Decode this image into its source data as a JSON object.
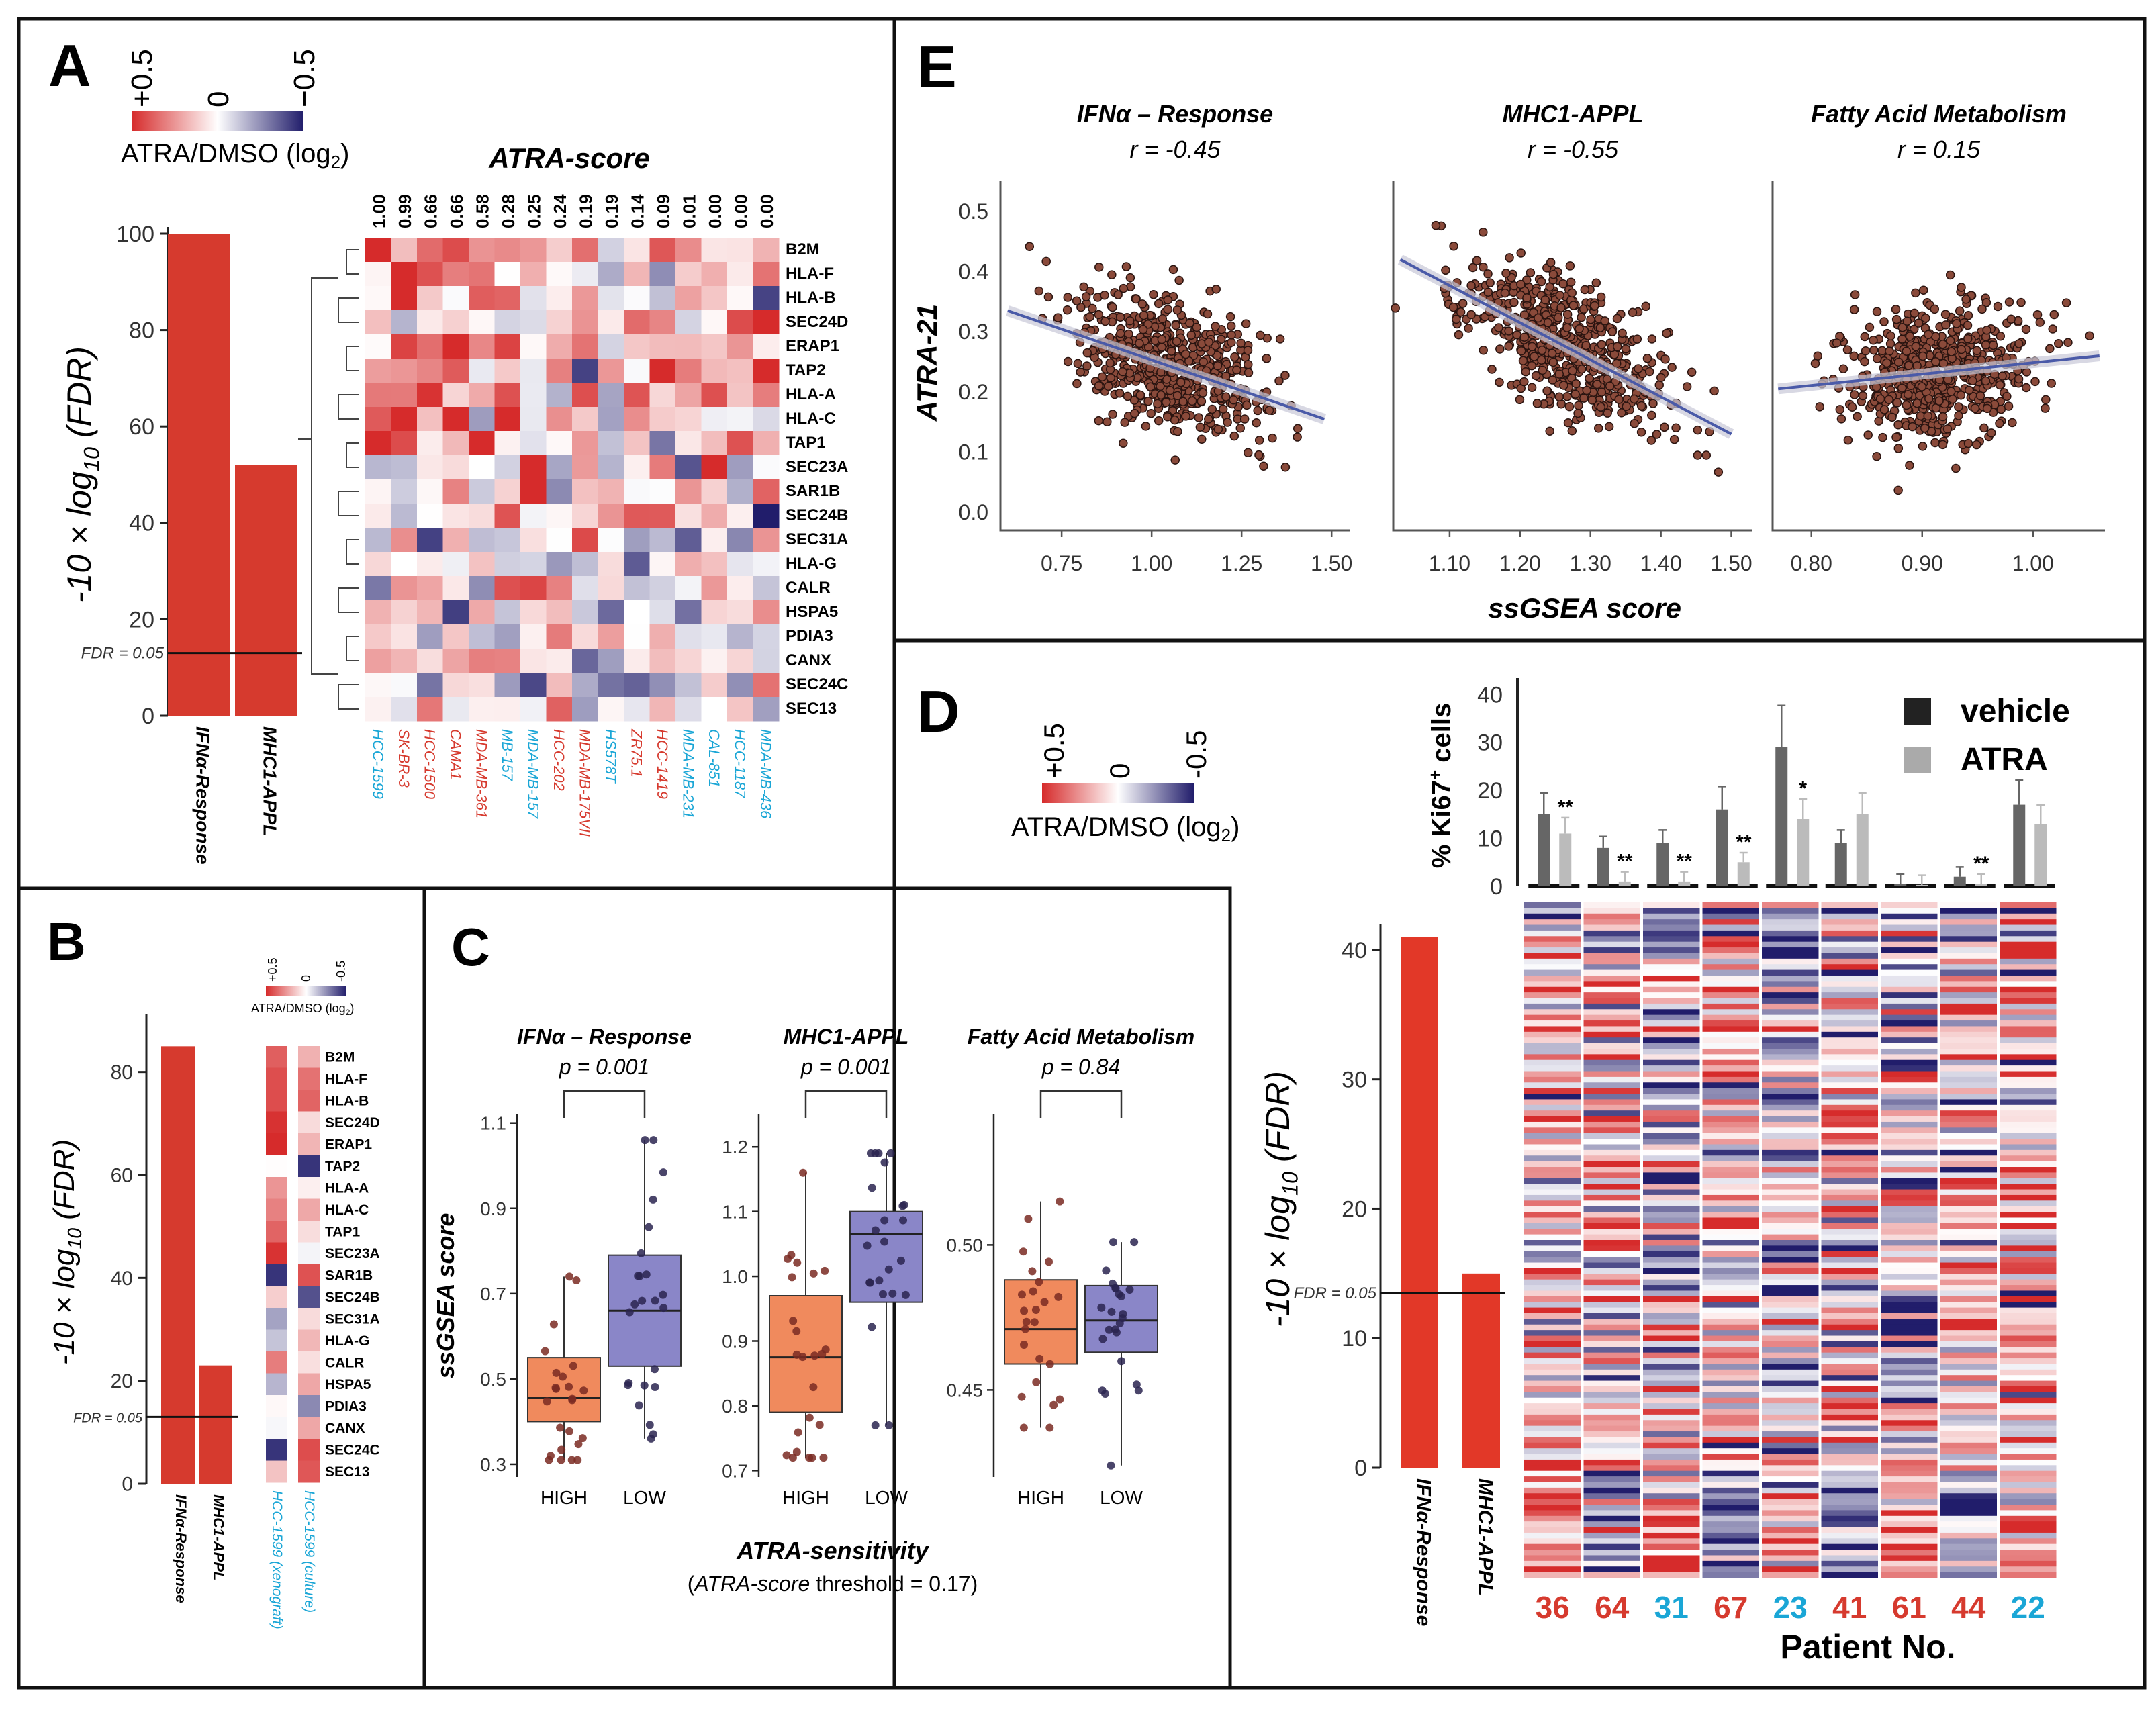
{
  "scale_labels": {
    "pos": "+0.5",
    "zero": "0",
    "neg": "−0.5",
    "small_neg": "-0.5",
    "caption": "ATRA/DMSO (log",
    "sub": "2",
    "close": ")"
  },
  "colors": {
    "red": "#c8322a",
    "bar_red": "#d63a2e",
    "bar_redD": "#e23828",
    "blue": "#2e2a7a",
    "cyan": "#1aa6d6",
    "redtext": "#d63a2e",
    "orange": "#f08a5d",
    "purple": "#8a86c8",
    "dot": "#8a4a3a",
    "grey_dark": "#555555",
    "grey_light": "#aaaaaa"
  },
  "panelA": {
    "label": "A",
    "ylabel": "-10 × log10 (FDR)",
    "yticks": [
      "0",
      "20",
      "40",
      "60",
      "80",
      "100"
    ],
    "fdr_label": "FDR = 0.05",
    "fdr_value": 13,
    "bars": [
      {
        "name": "IFNα-Response",
        "value": 100
      },
      {
        "name": "MHC1-APPL",
        "value": 52
      }
    ],
    "heat_title": "ATRA-score",
    "scores": [
      "1.00",
      "0.99",
      "0.66",
      "0.66",
      "0.58",
      "0.28",
      "0.25",
      "0.24",
      "0.19",
      "0.19",
      "0.14",
      "0.09",
      "0.01",
      "0.00",
      "0.00",
      "0.00"
    ],
    "genes": [
      "B2M",
      "HLA-F",
      "HLA-B",
      "SEC24D",
      "ERAP1",
      "TAP2",
      "HLA-A",
      "HLA-C",
      "TAP1",
      "SEC23A",
      "SAR1B",
      "SEC24B",
      "SEC31A",
      "HLA-G",
      "CALR",
      "HSPA5",
      "PDIA3",
      "CANX",
      "SEC24C",
      "SEC13"
    ],
    "cell_lines": [
      {
        "name": "HCC-1599",
        "color": "cyan"
      },
      {
        "name": "SK-BR-3",
        "color": "red"
      },
      {
        "name": "HCC-1500",
        "color": "red"
      },
      {
        "name": "CAMA1",
        "color": "red"
      },
      {
        "name": "MDA-MB-361",
        "color": "red"
      },
      {
        "name": "MB-157",
        "color": "cyan"
      },
      {
        "name": "MDA-MB-157",
        "color": "cyan"
      },
      {
        "name": "HCC-202",
        "color": "red"
      },
      {
        "name": "MDA-MB-175VII",
        "color": "red"
      },
      {
        "name": "HS578T",
        "color": "cyan"
      },
      {
        "name": "ZR75.1",
        "color": "red"
      },
      {
        "name": "HCC-1419",
        "color": "red"
      },
      {
        "name": "MDA-MB-231",
        "color": "cyan"
      },
      {
        "name": "CAL-851",
        "color": "cyan"
      },
      {
        "name": "HCC-1187",
        "color": "cyan"
      },
      {
        "name": "MDA-MB-436",
        "color": "cyan"
      }
    ]
  },
  "panelB": {
    "label": "B",
    "ylabel": "-10 × log10 (FDR)",
    "yticks": [
      "0",
      "20",
      "40",
      "60",
      "80"
    ],
    "fdr_label": "FDR = 0.05",
    "fdr_value": 13,
    "bars": [
      {
        "name": "IFNα-Response",
        "value": 85
      },
      {
        "name": "MHC1-APPL",
        "value": 23
      }
    ],
    "genes": [
      "B2M",
      "HLA-F",
      "HLA-B",
      "SEC24D",
      "ERAP1",
      "TAP2",
      "HLA-A",
      "HLA-C",
      "TAP1",
      "SEC23A",
      "SAR1B",
      "SEC24B",
      "SEC31A",
      "HLA-G",
      "CALR",
      "HSPA5",
      "PDIA3",
      "CANX",
      "SEC24C",
      "SEC13"
    ],
    "columns": [
      {
        "name": "HCC-1599 (xenograft)"
      },
      {
        "name": "HCC-1599 (culture)"
      }
    ]
  },
  "panelC": {
    "label": "C",
    "ylabel": "ssGSEA score",
    "xlabel": "ATRA-sensitivity",
    "note_pre": "(",
    "note_italic": "ATRA-score",
    "note_post": " threshold = 0.17)",
    "groups": [
      "HIGH",
      "LOW"
    ],
    "plots": [
      {
        "title": "IFNα – Response",
        "p": "p = 0.001",
        "yticks": [
          "0.3",
          "0.5",
          "0.7",
          "0.9",
          "1.1"
        ],
        "ymin": 0.27,
        "ymax": 1.12,
        "high": {
          "q1": 0.4,
          "median": 0.455,
          "q3": 0.55,
          "lo": 0.31,
          "hi": 0.74
        },
        "low": {
          "q1": 0.53,
          "median": 0.66,
          "q3": 0.79,
          "lo": 0.36,
          "hi": 1.06
        }
      },
      {
        "title": "MHC1-APPL",
        "p": "p = 0.001",
        "yticks": [
          "0.7",
          "0.8",
          "0.9",
          "1.0",
          "1.1",
          "1.2"
        ],
        "ymin": 0.69,
        "ymax": 1.25,
        "high": {
          "q1": 0.79,
          "median": 0.875,
          "q3": 0.97,
          "lo": 0.72,
          "hi": 1.16
        },
        "low": {
          "q1": 0.96,
          "median": 1.065,
          "q3": 1.1,
          "lo": 0.77,
          "hi": 1.19
        }
      },
      {
        "title": "Fatty Acid Metabolism",
        "p": "p = 0.84",
        "yticks": [
          "0.45",
          "0.50"
        ],
        "ymin": 0.42,
        "ymax": 0.545,
        "high": {
          "q1": 0.459,
          "median": 0.471,
          "q3": 0.488,
          "lo": 0.437,
          "hi": 0.515
        },
        "low": {
          "q1": 0.463,
          "median": 0.474,
          "q3": 0.486,
          "lo": 0.424,
          "hi": 0.501
        }
      }
    ]
  },
  "panelE": {
    "label": "E",
    "ylabel": "ATRA-21",
    "xlabel": "ssGSEA score",
    "yticks": [
      "0.0",
      "0.1",
      "0.2",
      "0.3",
      "0.4",
      "0.5"
    ],
    "plots": [
      {
        "title": "IFNα – Response",
        "r": "r = -0.45",
        "xticks": [
          "0.75",
          "1.00",
          "1.25",
          "1.50"
        ],
        "xmin": 0.58,
        "xmax": 1.55,
        "fit": [
          [
            0.6,
            0.335
          ],
          [
            1.48,
            0.155
          ]
        ]
      },
      {
        "title": "MHC1-APPL",
        "r": "r = -0.55",
        "xticks": [
          "1.10",
          "1.20",
          "1.30",
          "1.40",
          "1.50"
        ],
        "xmin": 1.02,
        "xmax": 1.53,
        "fit": [
          [
            1.03,
            0.42
          ],
          [
            1.5,
            0.13
          ]
        ]
      },
      {
        "title": "Fatty Acid Metabolism",
        "r": "r = 0.15",
        "xticks": [
          "0.80",
          "0.90",
          "1.00"
        ],
        "xmin": 0.765,
        "xmax": 1.065,
        "fit": [
          [
            0.77,
            0.205
          ],
          [
            1.06,
            0.26
          ]
        ]
      }
    ]
  },
  "panelD": {
    "label": "D",
    "ylabel": "-10 × log10 (FDR)",
    "yticks": [
      "0",
      "10",
      "20",
      "30",
      "40"
    ],
    "fdr_label": "FDR = 0.05",
    "fdr_value": 13.5,
    "bars": [
      {
        "name": "IFNα-Response",
        "value": 41
      },
      {
        "name": "MHC1-APPL",
        "value": 15
      }
    ],
    "ki67_label": "% Ki67",
    "ki67_sup": "+",
    "ki67_tail": " cells",
    "ki67_yticks": [
      "0",
      "10",
      "20",
      "30",
      "40"
    ],
    "legend": [
      {
        "name": "vehicle",
        "color": "#222222"
      },
      {
        "name": "ATRA",
        "color": "#aaaaaa"
      }
    ],
    "ki67": [
      {
        "vehicle": 15,
        "atra": 11,
        "sig": "**"
      },
      {
        "vehicle": 8,
        "atra": 1,
        "sig": "**"
      },
      {
        "vehicle": 9,
        "atra": 1,
        "sig": "**"
      },
      {
        "vehicle": 16,
        "atra": 5,
        "sig": "**"
      },
      {
        "vehicle": 29,
        "atra": 14,
        "sig": "*"
      },
      {
        "vehicle": 9,
        "atra": 15,
        "sig": ""
      },
      {
        "vehicle": 0.5,
        "atra": 0.3,
        "sig": ""
      },
      {
        "vehicle": 2,
        "atra": 0.5,
        "sig": "**"
      },
      {
        "vehicle": 17,
        "atra": 13,
        "sig": ""
      }
    ],
    "patients": [
      {
        "id": "36",
        "color": "red"
      },
      {
        "id": "64",
        "color": "red"
      },
      {
        "id": "31",
        "color": "cyan"
      },
      {
        "id": "67",
        "color": "red"
      },
      {
        "id": "23",
        "color": "cyan"
      },
      {
        "id": "41",
        "color": "red"
      },
      {
        "id": "61",
        "color": "red"
      },
      {
        "id": "44",
        "color": "red"
      },
      {
        "id": "22",
        "color": "cyan"
      }
    ],
    "xlabel": "Patient No."
  }
}
